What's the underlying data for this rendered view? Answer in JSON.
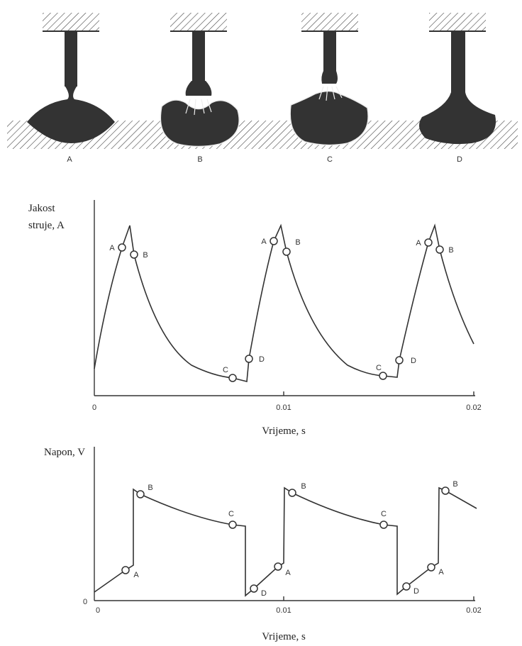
{
  "figures": {
    "labels": [
      "A",
      "B",
      "C",
      "D"
    ]
  },
  "current_chart": {
    "y_label": [
      "Jakost",
      "struje, A"
    ],
    "x_ticks": [
      "0",
      "0.01",
      "0.02"
    ],
    "x_label": "Vrijeme, s",
    "point_labels": [
      "A",
      "B",
      "C",
      "D",
      "A",
      "B",
      "C",
      "D",
      "A",
      "B"
    ]
  },
  "voltage_chart": {
    "y_label": "Napon, V",
    "y_origin": "0",
    "x_ticks": [
      "0",
      "0.01",
      "0.02"
    ],
    "x_label": "Vrijeme, s",
    "point_labels": [
      "A",
      "B",
      "C",
      "D",
      "A",
      "B",
      "C",
      "D",
      "A",
      "B"
    ]
  }
}
